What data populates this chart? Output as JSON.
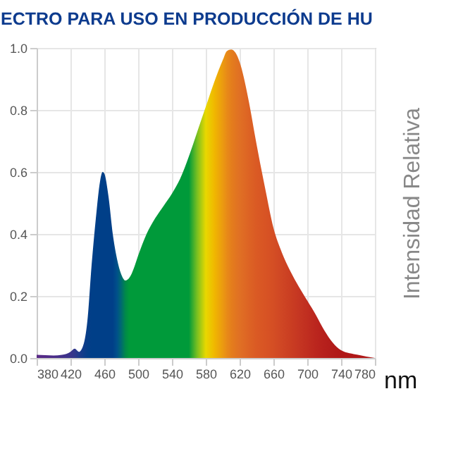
{
  "chart_data": {
    "type": "area",
    "title": "ECTRO PARA USO EN PRODUCCIÓN DE HU",
    "xlabel": "nm",
    "ylabel": "Intensidad Relativa",
    "xlim": [
      380,
      780
    ],
    "xticks": [
      380,
      420,
      460,
      500,
      540,
      580,
      620,
      660,
      700,
      740,
      780
    ],
    "ylim": [
      0,
      1
    ],
    "yticks": [
      {
        "value": 0,
        "label": "0.0"
      },
      {
        "value": 0.2,
        "label": "0.2"
      },
      {
        "value": 0.4,
        "label": "0.4"
      },
      {
        "value": 0.6,
        "label": "0.6"
      },
      {
        "value": 0.8,
        "label": "0.8"
      },
      {
        "value": 1,
        "label": "1.0"
      }
    ],
    "grid": true,
    "series": [
      {
        "x": [
          380,
          400,
          410,
          420,
          425,
          430,
          435,
          440,
          445,
          450,
          455,
          458,
          460,
          465,
          470,
          475,
          480,
          485,
          490,
          495,
          500,
          510,
          520,
          530,
          540,
          550,
          560,
          570,
          580,
          590,
          600,
          605,
          610,
          615,
          620,
          630,
          640,
          650,
          660,
          670,
          680,
          690,
          700,
          710,
          720,
          730,
          740,
          760,
          780
        ],
        "values": [
          0.01,
          0.008,
          0.01,
          0.02,
          0.03,
          0.02,
          0.04,
          0.12,
          0.3,
          0.45,
          0.57,
          0.6,
          0.595,
          0.52,
          0.4,
          0.32,
          0.27,
          0.25,
          0.26,
          0.29,
          0.33,
          0.4,
          0.45,
          0.49,
          0.53,
          0.58,
          0.65,
          0.73,
          0.81,
          0.89,
          0.96,
          0.99,
          0.995,
          0.985,
          0.955,
          0.84,
          0.69,
          0.55,
          0.42,
          0.34,
          0.28,
          0.23,
          0.185,
          0.14,
          0.09,
          0.05,
          0.025,
          0.01,
          0
        ],
        "colors": [
          "#5b2a86",
          "#4a2c88",
          "#42308a",
          "#3a348a",
          "#30378a",
          "#1f3a8a",
          "#123c8a",
          "#063e88",
          "#003f88",
          "#003f88",
          "#003f88",
          "#003f88",
          "#003f88",
          "#003f88",
          "#003f88",
          "#00508a",
          "#006a70",
          "#008a48",
          "#009a3a",
          "#009a3a",
          "#009a3a",
          "#009a3a",
          "#009a3a",
          "#009a3a",
          "#009a3a",
          "#009a3a",
          "#009a3a",
          "#7cc020",
          "#e8d800",
          "#f0b800",
          "#eb9a10",
          "#e88a18",
          "#e47e1c",
          "#e27620",
          "#e07024",
          "#dd6424",
          "#da5a24",
          "#d85424",
          "#d44e24",
          "#cf4624",
          "#ca3e22",
          "#c53622",
          "#c02e20",
          "#bb261e",
          "#b6201c",
          "#b21c1a",
          "#b01818",
          "#b01818",
          "#b01818"
        ]
      }
    ]
  }
}
